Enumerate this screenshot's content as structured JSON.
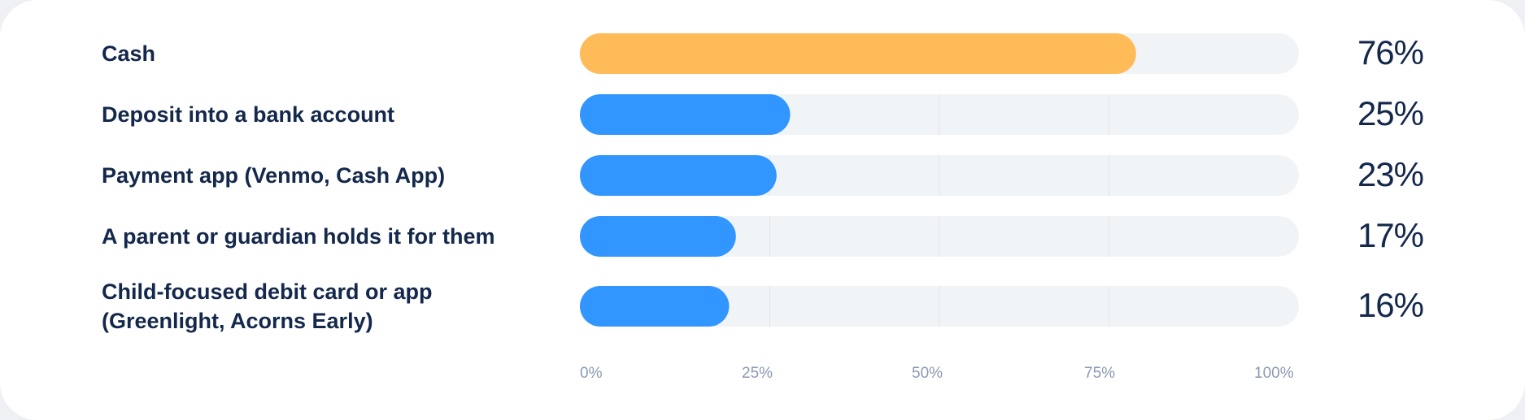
{
  "chart_data": {
    "type": "bar",
    "orientation": "horizontal",
    "categories": [
      "Cash",
      "Deposit into a bank account",
      "Payment app (Venmo, Cash App)",
      "A parent or guardian holds it for them",
      "Child-focused debit card or app (Greenlight, Acorns Early)"
    ],
    "category_lines": [
      [
        "Cash"
      ],
      [
        "Deposit into a bank account"
      ],
      [
        "Payment app (Venmo, Cash App)"
      ],
      [
        "A parent or guardian holds it for them"
      ],
      [
        "Child-focused debit card or app",
        "(Greenlight, Acorns Early)"
      ]
    ],
    "values": [
      76,
      25,
      23,
      17,
      16
    ],
    "value_labels": [
      "76%",
      "25%",
      "23%",
      "17%",
      "16%"
    ],
    "xlim": [
      0,
      100
    ],
    "xticks": [
      0,
      25,
      50,
      75,
      100
    ],
    "xtick_labels": [
      "0%",
      "25%",
      "50%",
      "75%",
      "100%"
    ],
    "grid": true,
    "colors": {
      "highlight": "#ffbb58",
      "bar": "#3196ff",
      "track": "#f1f4f7",
      "grid": "#e2e2e4"
    },
    "highlight_index": 0
  }
}
